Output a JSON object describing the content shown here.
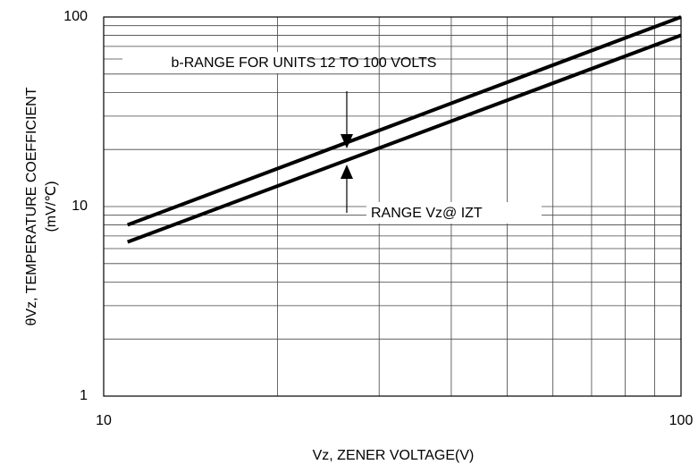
{
  "chart_data": {
    "type": "line",
    "xlabel": "Vz, ZENER VOLTAGE(V)",
    "ylabel": [
      "θVz, TEMPERATURE COEFFICIENT",
      "(mV/℃)"
    ],
    "annotations": [
      "b-RANGE FOR UNITS 12 TO 100 VOLTS",
      "RANGE Vz@ IZT"
    ],
    "x": [
      11,
      100
    ],
    "series": [
      {
        "color": "#000000",
        "values": [
          8,
          100
        ]
      },
      {
        "color": "#000000",
        "values": [
          6.5,
          80
        ]
      }
    ],
    "xlim": [
      10,
      100
    ],
    "xticks": [
      10,
      100
    ],
    "ylim": [
      1,
      100
    ],
    "yticks": [
      1,
      10,
      100
    ],
    "xscale": "log",
    "yscale": "log",
    "grid": true
  }
}
